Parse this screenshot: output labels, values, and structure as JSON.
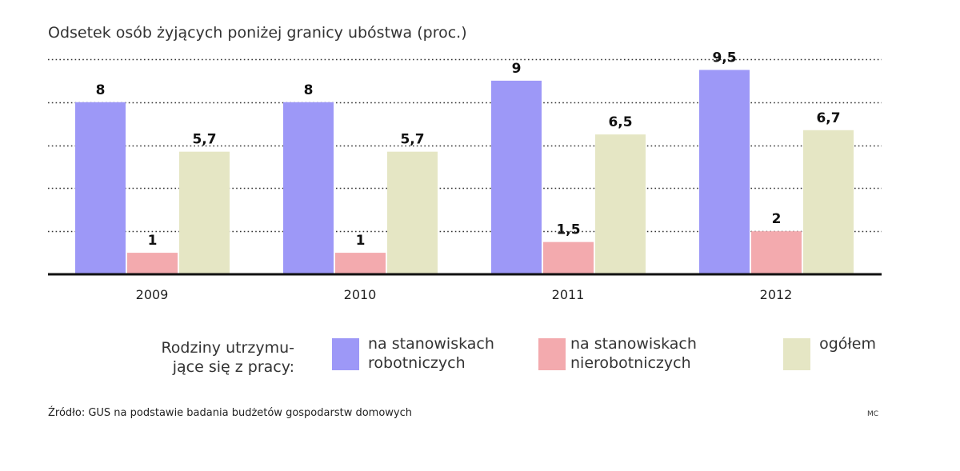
{
  "chart_data": {
    "type": "bar",
    "title": "Odsetek osób żyjących poniżej granicy ubóstwa (proc.)",
    "categories": [
      "2009",
      "2010",
      "2011",
      "2012"
    ],
    "series": [
      {
        "name_lines": [
          "na stanowiskach",
          "robotniczych"
        ],
        "color": "#9d98f7",
        "values": [
          8,
          8,
          9,
          9.5
        ],
        "labels": [
          "8",
          "8",
          "9",
          "9,5"
        ]
      },
      {
        "name_lines": [
          "na stanowiskach",
          "nierobotniczych"
        ],
        "color": "#f3aaae",
        "values": [
          1,
          1,
          1.5,
          2
        ],
        "labels": [
          "1",
          "1",
          "1,5",
          "2"
        ]
      },
      {
        "name_lines": [
          "ogółem"
        ],
        "color": "#e5e6c4",
        "values": [
          5.7,
          5.7,
          6.5,
          6.7
        ],
        "labels": [
          "5,7",
          "5,7",
          "6,5",
          "6,7"
        ]
      }
    ],
    "ylim": [
      0,
      10
    ],
    "grid": true,
    "legend_title_lines": [
      "Rodziny utrzymu-",
      "jące się z pracy:"
    ],
    "legend_position": "bottom"
  },
  "source": "Źródło: GUS na podstawie badania budżetów gospodarstw domowych",
  "credit": "MC"
}
